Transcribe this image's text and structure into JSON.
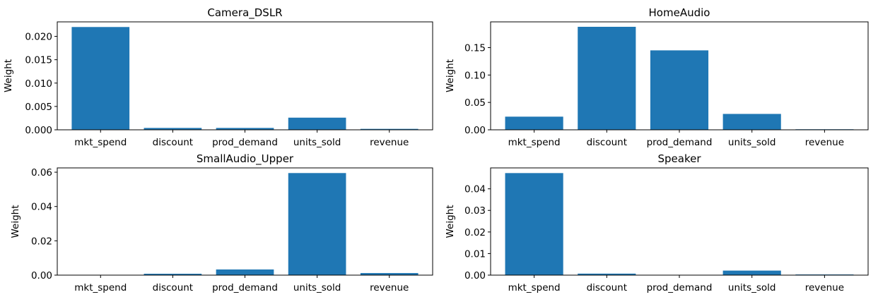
{
  "chart_data": [
    {
      "type": "bar",
      "title": "Camera_DSLR",
      "ylabel": "Weight",
      "categories": [
        "mkt_spend",
        "discount",
        "prod_demand",
        "units_sold",
        "revenue"
      ],
      "values": [
        0.022,
        0.0004,
        0.0004,
        0.0026,
        0.0002
      ],
      "ylim": [
        0,
        0.0231
      ],
      "yticks": [
        0.0,
        0.005,
        0.01,
        0.015,
        0.02
      ],
      "ytick_labels": [
        "0.000",
        "0.005",
        "0.010",
        "0.015",
        "0.020"
      ],
      "color": "#1f77b4",
      "grid": false
    },
    {
      "type": "bar",
      "title": "HomeAudio",
      "ylabel": "Weight",
      "categories": [
        "mkt_spend",
        "discount",
        "prod_demand",
        "units_sold",
        "revenue"
      ],
      "values": [
        0.024,
        0.188,
        0.145,
        0.029,
        0.001
      ],
      "ylim": [
        0,
        0.197
      ],
      "yticks": [
        0.0,
        0.05,
        0.1,
        0.15
      ],
      "ytick_labels": [
        "0.00",
        "0.05",
        "0.10",
        "0.15"
      ],
      "color": "#1f77b4",
      "grid": false
    },
    {
      "type": "bar",
      "title": "SmallAudio_Upper",
      "ylabel": "Weight",
      "categories": [
        "mkt_spend",
        "discount",
        "prod_demand",
        "units_sold",
        "revenue"
      ],
      "values": [
        0.0,
        0.0008,
        0.0033,
        0.0595,
        0.0012
      ],
      "ylim": [
        0,
        0.0625
      ],
      "yticks": [
        0.0,
        0.02,
        0.04,
        0.06
      ],
      "ytick_labels": [
        "0.00",
        "0.02",
        "0.04",
        "0.06"
      ],
      "color": "#1f77b4",
      "grid": false
    },
    {
      "type": "bar",
      "title": "Speaker",
      "ylabel": "Weight",
      "categories": [
        "mkt_spend",
        "discount",
        "prod_demand",
        "units_sold",
        "revenue"
      ],
      "values": [
        0.0473,
        0.0007,
        0.0,
        0.0021,
        0.0003
      ],
      "ylim": [
        0,
        0.0497
      ],
      "yticks": [
        0.0,
        0.01,
        0.02,
        0.03,
        0.04
      ],
      "ytick_labels": [
        "0.00",
        "0.01",
        "0.02",
        "0.03",
        "0.04"
      ],
      "color": "#1f77b4",
      "grid": false
    }
  ]
}
